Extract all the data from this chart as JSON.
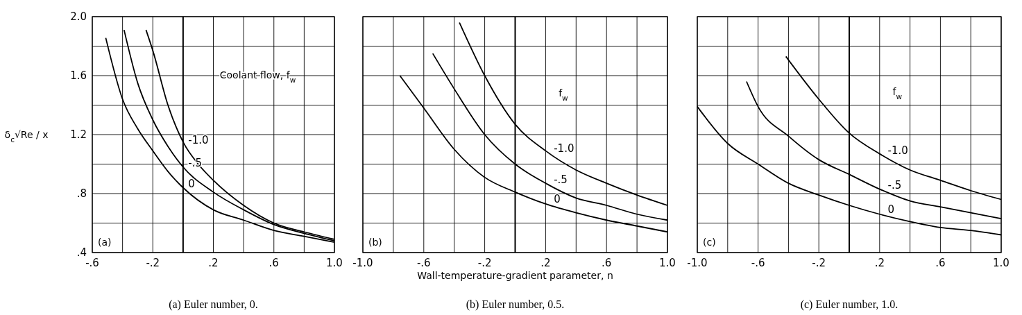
{
  "chart_data": [
    {
      "type": "line",
      "title": "(a)  Euler number, 0.",
      "ylabel": "δ$_{c}$√Re / x",
      "legend_title": "Coolant flow, f$_{w}$",
      "annotations": [
        "(a)"
      ],
      "xlim": [
        -0.6,
        1.0
      ],
      "xticks": [
        {
          "value": -0.6,
          "label": "-.6"
        },
        {
          "value": -0.4,
          "label": null
        },
        {
          "value": -0.2,
          "label": "-.2"
        },
        {
          "value": 0,
          "label": null
        },
        {
          "value": 0.2,
          "label": ".2"
        },
        {
          "value": 0.4,
          "label": null
        },
        {
          "value": 0.6,
          "label": ".6"
        },
        {
          "value": 0.8,
          "label": null
        },
        {
          "value": 1.0,
          "label": "1.0"
        }
      ],
      "ylim": [
        0.4,
        2.0
      ],
      "yticks": [
        {
          "value": 0.4,
          "label": ".4"
        },
        {
          "value": 0.6,
          "label": null
        },
        {
          "value": 0.8,
          "label": ".8"
        },
        {
          "value": 1.0,
          "label": null
        },
        {
          "value": 1.2,
          "label": "1.2"
        },
        {
          "value": 1.4,
          "label": null
        },
        {
          "value": 1.6,
          "label": "1.6"
        },
        {
          "value": 1.8,
          "label": null
        },
        {
          "value": 2.0,
          "label": "2.0"
        }
      ],
      "grid": true,
      "marker": "none",
      "line_style": "solid",
      "series": [
        {
          "name": "-1.0",
          "color": "#000000",
          "x": [
            -0.245,
            -0.2,
            -0.1,
            0,
            0.1,
            0.2,
            0.4,
            0.6,
            0.8,
            1.0
          ],
          "values": [
            1.91,
            1.77,
            1.4,
            1.15,
            1.0,
            0.89,
            0.72,
            0.6,
            0.54,
            0.49
          ]
        },
        {
          "name": "-.5",
          "color": "#000000",
          "x": [
            -0.39,
            -0.3,
            -0.2,
            -0.1,
            0,
            0.2,
            0.4,
            0.6,
            0.8,
            1.0
          ],
          "values": [
            1.91,
            1.55,
            1.3,
            1.12,
            0.98,
            0.81,
            0.69,
            0.59,
            0.53,
            0.48
          ]
        },
        {
          "name": "0",
          "color": "#000000",
          "x": [
            -0.511,
            -0.4,
            -0.3,
            -0.2,
            -0.1,
            0,
            0.2,
            0.4,
            0.6,
            0.8,
            1.0
          ],
          "values": [
            1.856,
            1.44,
            1.24,
            1.09,
            0.95,
            0.84,
            0.69,
            0.62,
            0.55,
            0.51,
            0.47
          ]
        }
      ]
    },
    {
      "type": "line",
      "title": "(b)  Euler number, 0.5.",
      "xlabel": "Wall-temperature-gradient parameter, n",
      "legend_title": "f$_{w}$",
      "annotations": [
        "(b)"
      ],
      "xlim": [
        -1.0,
        1.0
      ],
      "xticks": [
        {
          "value": -1.0,
          "label": "-1.0"
        },
        {
          "value": -0.8,
          "label": null
        },
        {
          "value": -0.6,
          "label": "-.6"
        },
        {
          "value": -0.4,
          "label": null
        },
        {
          "value": -0.2,
          "label": "-.2"
        },
        {
          "value": 0,
          "label": null
        },
        {
          "value": 0.2,
          "label": ".2"
        },
        {
          "value": 0.4,
          "label": null
        },
        {
          "value": 0.6,
          "label": ".6"
        },
        {
          "value": 0.8,
          "label": null
        },
        {
          "value": 1.0,
          "label": "1.0"
        }
      ],
      "ylim": [
        0.4,
        2.0
      ],
      "yticks": [
        0.4,
        0.6,
        0.8,
        1.0,
        1.2,
        1.4,
        1.6,
        1.8,
        2.0
      ],
      "tick_labels": "x",
      "grid": true,
      "marker": "none",
      "line_style": "solid",
      "series": [
        {
          "name": "-1.0",
          "color": "#000000",
          "x": [
            -0.366,
            -0.2,
            0,
            0.2,
            0.4,
            0.6,
            0.8,
            1.0
          ],
          "values": [
            1.96,
            1.6,
            1.27,
            1.09,
            0.96,
            0.87,
            0.79,
            0.72
          ]
        },
        {
          "name": "-.5",
          "color": "#000000",
          "x": [
            -0.541,
            -0.4,
            -0.2,
            0,
            0.2,
            0.4,
            0.6,
            0.8,
            1.0
          ],
          "values": [
            1.75,
            1.51,
            1.2,
            1.0,
            0.87,
            0.77,
            0.72,
            0.66,
            0.62
          ]
        },
        {
          "name": "0",
          "color": "#000000",
          "x": [
            -0.757,
            -0.6,
            -0.4,
            -0.2,
            0,
            0.2,
            0.4,
            0.6,
            0.8,
            1.0
          ],
          "values": [
            1.6,
            1.38,
            1.1,
            0.91,
            0.81,
            0.73,
            0.67,
            0.62,
            0.58,
            0.54
          ]
        }
      ]
    },
    {
      "type": "line",
      "title": "(c)  Euler number, 1.0.",
      "legend_title": "f$_{w}$",
      "annotations": [
        "(c)"
      ],
      "xlim": [
        -1.0,
        1.0
      ],
      "xticks": [
        {
          "value": -1.0,
          "label": "-1.0"
        },
        {
          "value": -0.8,
          "label": null
        },
        {
          "value": -0.6,
          "label": "-.6"
        },
        {
          "value": -0.4,
          "label": null
        },
        {
          "value": -0.2,
          "label": "-.2"
        },
        {
          "value": 0,
          "label": null
        },
        {
          "value": 0.2,
          "label": ".2"
        },
        {
          "value": 0.4,
          "label": null
        },
        {
          "value": 0.6,
          "label": ".6"
        },
        {
          "value": 0.8,
          "label": null
        },
        {
          "value": 1.0,
          "label": "1.0"
        }
      ],
      "ylim": [
        0.4,
        2.0
      ],
      "yticks": [
        0.4,
        0.6,
        0.8,
        1.0,
        1.2,
        1.4,
        1.6,
        1.8,
        2.0
      ],
      "tick_labels": "x",
      "grid": true,
      "marker": "none",
      "line_style": "solid",
      "series": [
        {
          "name": "-1.0",
          "color": "#000000",
          "x": [
            -0.417,
            -0.2,
            0,
            0.2,
            0.4,
            0.6,
            0.8,
            1.0
          ],
          "values": [
            1.73,
            1.44,
            1.21,
            1.07,
            0.96,
            0.89,
            0.82,
            0.76
          ]
        },
        {
          "name": "-.5",
          "color": "#000000",
          "x": [
            -0.676,
            -0.6,
            -0.4,
            -0.2,
            0,
            0.2,
            0.4,
            0.6,
            0.8,
            1.0
          ],
          "values": [
            1.56,
            1.39,
            1.19,
            1.03,
            0.93,
            0.83,
            0.75,
            0.71,
            0.67,
            0.63
          ]
        },
        {
          "name": "0",
          "color": "#000000",
          "x": [
            -1.0,
            -0.8,
            -0.6,
            -0.4,
            -0.2,
            0,
            0.2,
            0.4,
            0.6,
            0.8,
            1.0
          ],
          "values": [
            1.39,
            1.14,
            1.0,
            0.87,
            0.79,
            0.72,
            0.66,
            0.61,
            0.57,
            0.55,
            0.52
          ]
        }
      ]
    }
  ]
}
